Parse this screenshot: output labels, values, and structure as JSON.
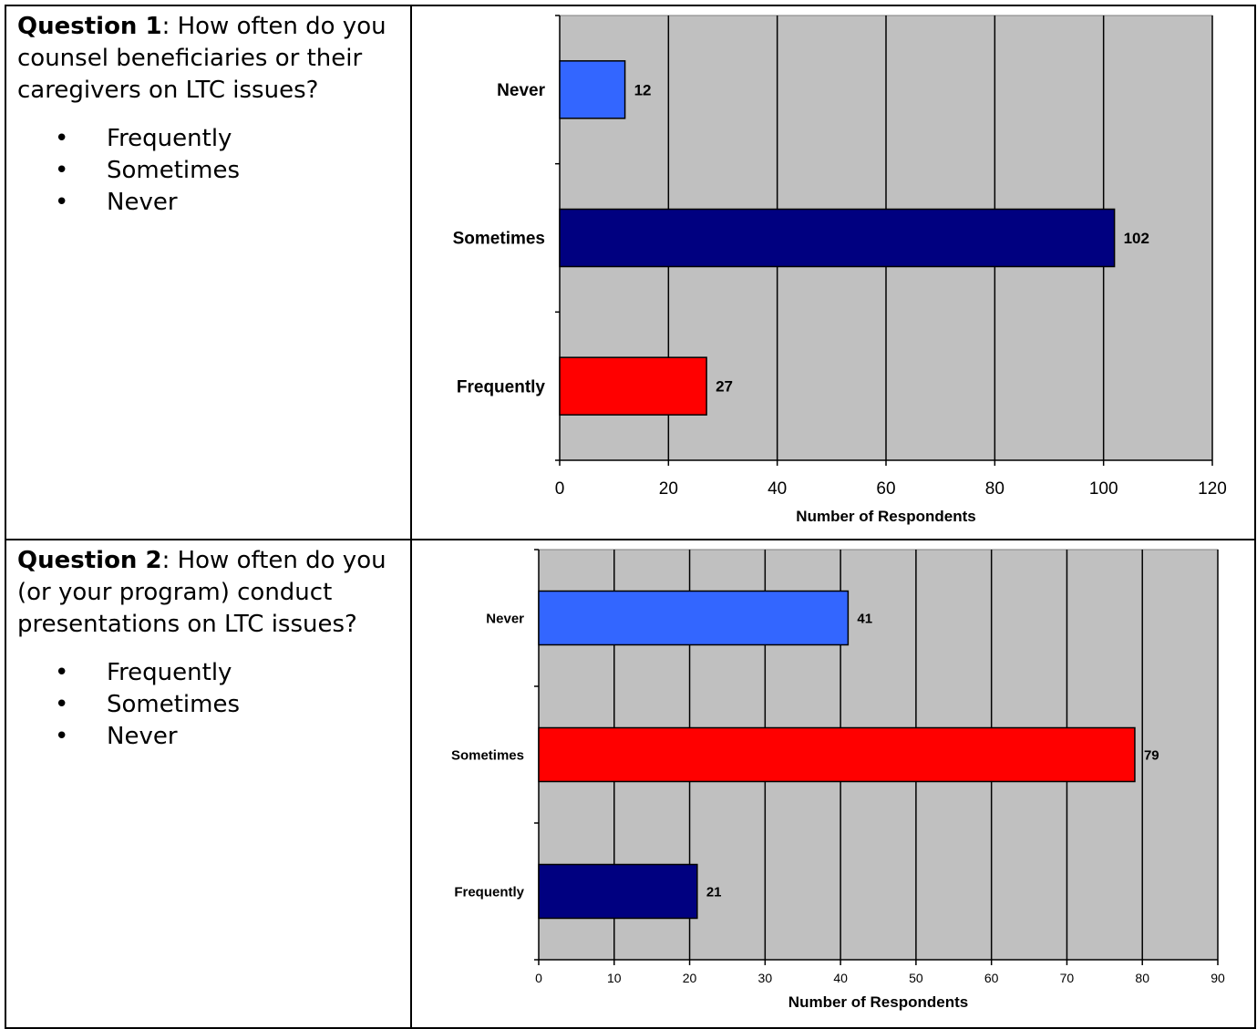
{
  "questions": [
    {
      "label": "Question 1",
      "text": ": How often do you counsel beneficiaries or their caregivers on LTC issues?",
      "options": [
        "Frequently",
        "Sometimes",
        "Never"
      ]
    },
    {
      "label": "Question 2",
      "text": ": How often do you (or your program) conduct presentations on LTC issues?",
      "options": [
        "Frequently",
        "Sometimes",
        "Never"
      ]
    }
  ],
  "chart_data": [
    {
      "type": "bar",
      "orientation": "horizontal",
      "categories": [
        "Never",
        "Sometimes",
        "Frequently"
      ],
      "values": [
        12,
        102,
        27
      ],
      "colors": [
        "#3366ff",
        "#000080",
        "#ff0000"
      ],
      "data_labels": [
        "12",
        "102",
        "27"
      ],
      "xlabel": "Number of Respondents",
      "ylabel": "",
      "xlim": [
        0,
        120
      ],
      "xticks": [
        0,
        20,
        40,
        60,
        80,
        100,
        120
      ],
      "grid": true,
      "plot_background": "#c0c0c0"
    },
    {
      "type": "bar",
      "orientation": "horizontal",
      "categories": [
        "Never",
        "Sometimes",
        "Frequently"
      ],
      "values": [
        41,
        79,
        21
      ],
      "colors": [
        "#3366ff",
        "#ff0000",
        "#000080"
      ],
      "data_labels": [
        "41",
        "79",
        "21"
      ],
      "xlabel": "Number of Respondents",
      "ylabel": "",
      "xlim": [
        0,
        90
      ],
      "xticks": [
        0,
        10,
        20,
        30,
        40,
        50,
        60,
        70,
        80,
        90
      ],
      "grid": true,
      "plot_background": "#c0c0c0"
    }
  ]
}
